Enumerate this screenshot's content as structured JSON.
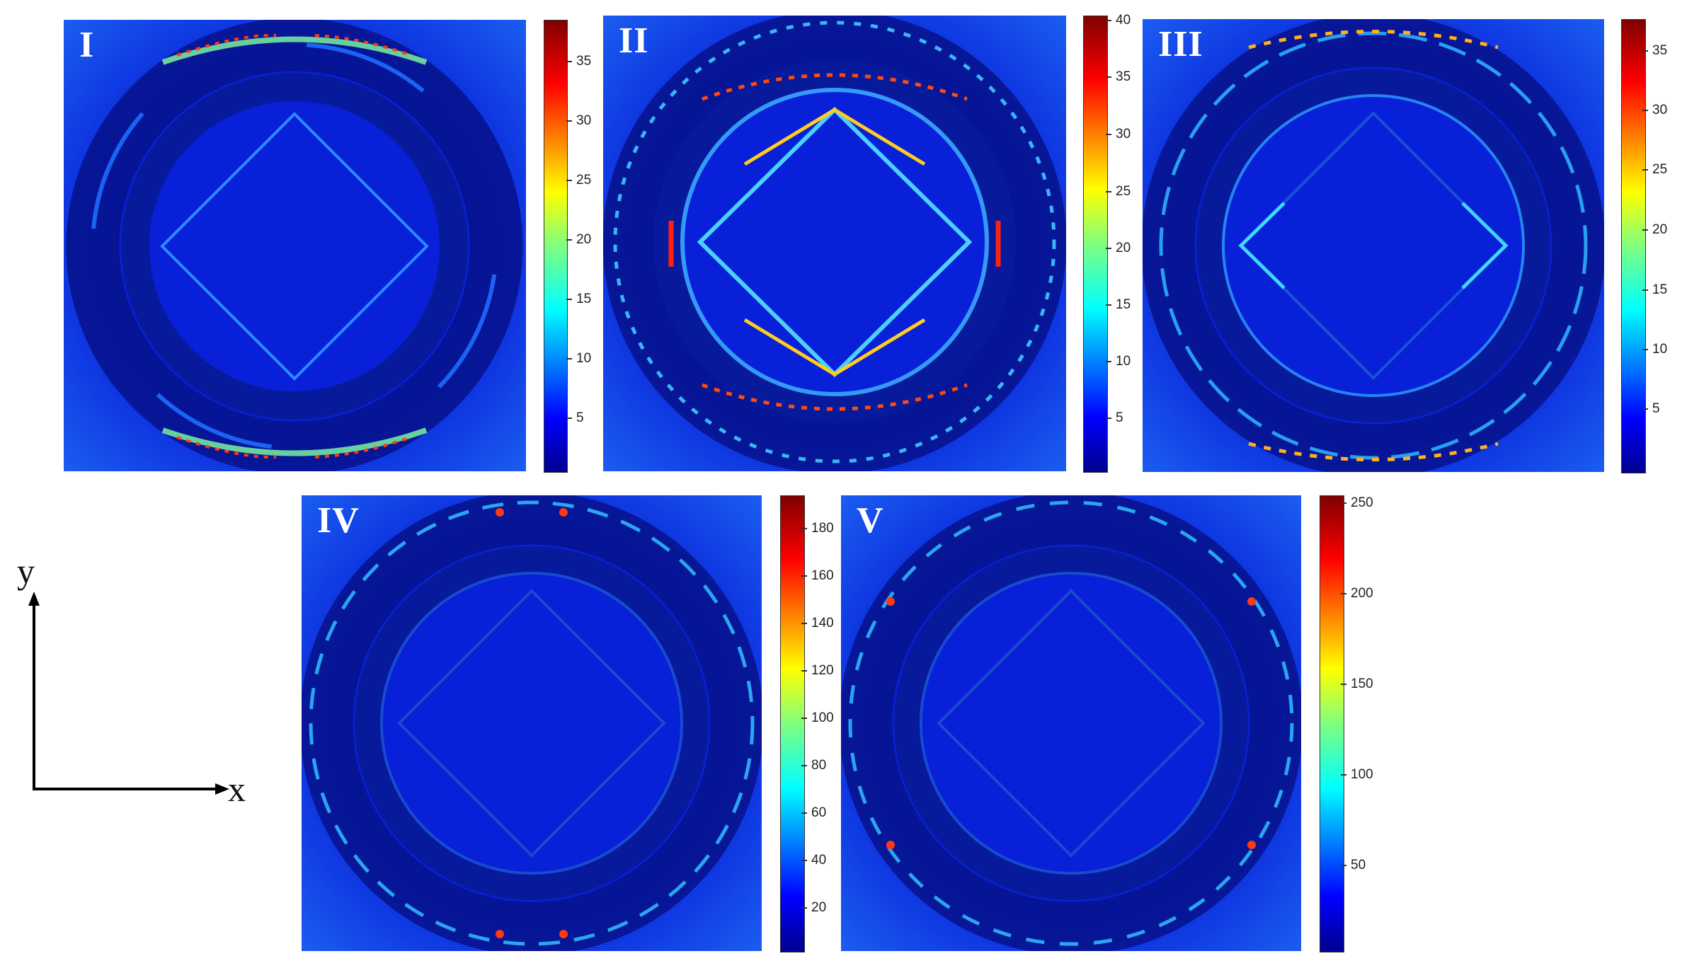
{
  "panels": [
    {
      "label": "I",
      "colorbar_ticks": [
        "35",
        "30",
        "25",
        "20",
        "15",
        "10",
        "5"
      ]
    },
    {
      "label": "II",
      "colorbar_ticks": [
        "40",
        "35",
        "30",
        "25",
        "20",
        "15",
        "10",
        "5"
      ]
    },
    {
      "label": "III",
      "colorbar_ticks": [
        "35",
        "30",
        "25",
        "20",
        "15",
        "10",
        "5"
      ]
    },
    {
      "label": "IV",
      "colorbar_ticks": [
        "180",
        "160",
        "140",
        "120",
        "100",
        "80",
        "60",
        "40",
        "20"
      ]
    },
    {
      "label": "V",
      "colorbar_ticks": [
        "250",
        "200",
        "150",
        "100",
        "50"
      ]
    }
  ],
  "axes": {
    "x_label": "x",
    "y_label": "y"
  },
  "colors": {
    "background": "#0a1ec8",
    "dark_ring": "#08148c",
    "highlight": "#2aa0ff",
    "hot": "#ff3a12"
  }
}
